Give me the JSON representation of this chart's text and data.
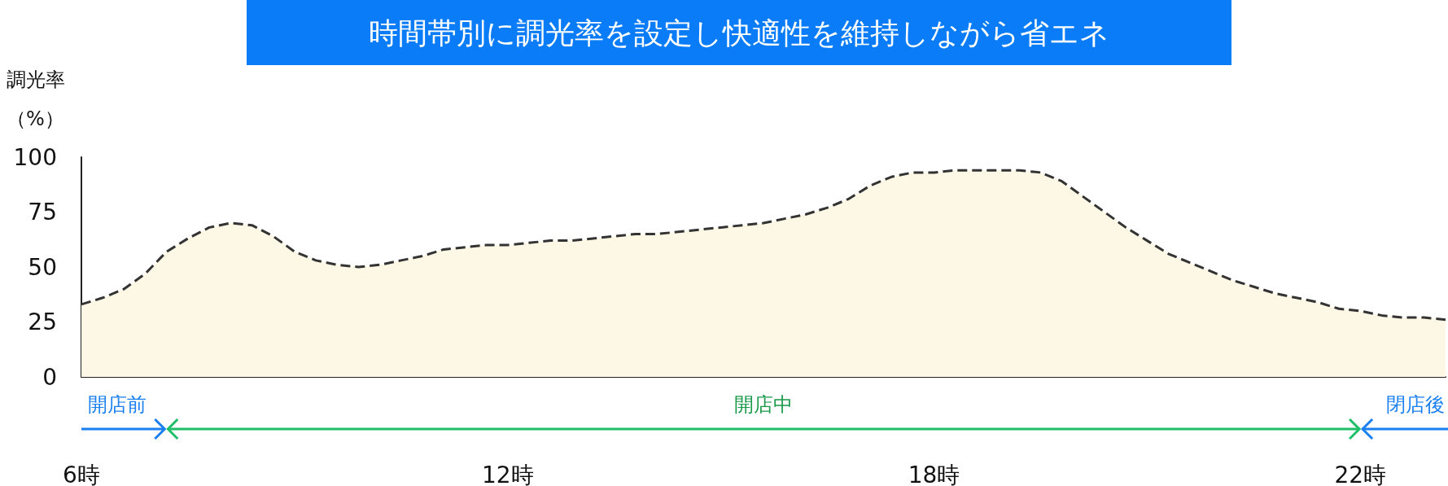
{
  "chart_data": {
    "type": "area",
    "title": "時間帯別に調光率を設定し快適性を維持しながら省エネ",
    "ylabel": "調光率（%）",
    "categories": [
      "6時",
      null,
      null,
      null,
      null,
      null,
      null,
      null,
      null,
      null,
      null,
      null,
      null,
      null,
      null,
      null,
      null,
      null,
      null,
      null,
      "12時",
      null,
      null,
      null,
      null,
      null,
      null,
      null,
      null,
      null,
      null,
      null,
      null,
      null,
      null,
      null,
      null,
      null,
      null,
      null,
      "18時",
      null,
      null,
      null,
      null,
      null,
      null,
      null,
      null,
      null,
      null,
      null,
      null,
      null,
      null,
      null,
      null,
      null,
      null,
      null,
      "22時",
      null,
      null,
      null,
      null
    ],
    "values": [
      33,
      36,
      40,
      47,
      57,
      63,
      68,
      70,
      69,
      64,
      57,
      53,
      51,
      50,
      51,
      53,
      55,
      58,
      59,
      60,
      60,
      61,
      62,
      62,
      63,
      64,
      65,
      65,
      66,
      67,
      68,
      69,
      70,
      72,
      74,
      77,
      81,
      87,
      91,
      93,
      93,
      94,
      94,
      94,
      94,
      93,
      89,
      82,
      75,
      68,
      62,
      56,
      52,
      48,
      44,
      41,
      38,
      36,
      34,
      31,
      30,
      28,
      27,
      27,
      26
    ],
    "color": "#333333",
    "line_style": "dashed",
    "ylim": [
      0,
      100
    ],
    "yticks": [
      0,
      25,
      50,
      75,
      100
    ],
    "grid": false,
    "annotations": [
      "開店前",
      "開店中",
      "閉店後"
    ]
  }
}
